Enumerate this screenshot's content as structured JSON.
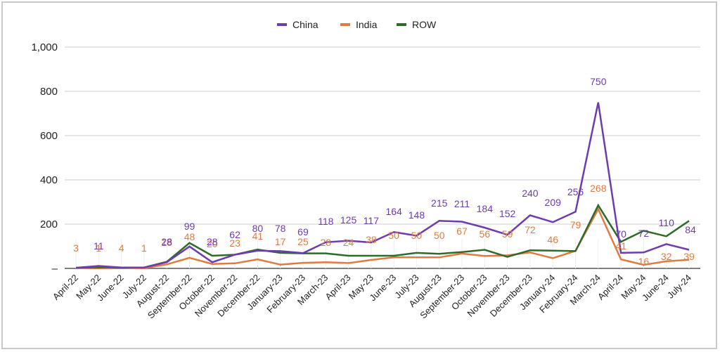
{
  "chart_data": {
    "type": "line",
    "title": "",
    "xlabel": "",
    "ylabel": "",
    "ylim": [
      0,
      1000
    ],
    "yticks": [
      "–",
      "200",
      "400",
      "600",
      "800",
      "1,000"
    ],
    "grid": true,
    "legend_position": "top",
    "categories": [
      "April-22",
      "May-22",
      "June-22",
      "July-22",
      "August-22",
      "September-22",
      "October-22",
      "November-22",
      "December-22",
      "January-23",
      "February-23",
      "March-23",
      "April-23",
      "May-23",
      "June-23",
      "July-23",
      "August-23",
      "September-23",
      "October-23",
      "November-23",
      "December-23",
      "January-24",
      "February-24",
      "March-24",
      "April-24",
      "May-24",
      "June-24",
      "July-24"
    ],
    "series": [
      {
        "name": "China",
        "color": "#6f3bb0",
        "values": [
          3,
          11,
          4,
          4,
          28,
          99,
          28,
          62,
          80,
          78,
          69,
          118,
          125,
          117,
          164,
          148,
          215,
          211,
          184,
          152,
          240,
          209,
          256,
          750,
          70,
          72,
          110,
          84
        ]
      },
      {
        "name": "India",
        "color": "#e07b3f",
        "values": [
          3,
          1,
          4,
          1,
          18,
          48,
          20,
          23,
          41,
          17,
          25,
          28,
          24,
          38,
          50,
          50,
          50,
          67,
          56,
          59,
          72,
          46,
          79,
          268,
          41,
          16,
          32,
          39
        ]
      },
      {
        "name": "ROW",
        "color": "#2e6b2a",
        "values": [
          3,
          5,
          4,
          4,
          30,
          115,
          57,
          62,
          85,
          70,
          68,
          68,
          57,
          57,
          57,
          70,
          66,
          74,
          84,
          52,
          82,
          80,
          78,
          285,
          120,
          170,
          145,
          215
        ]
      }
    ],
    "data_labels": {
      "China": [
        "",
        "11",
        "",
        "",
        "28",
        "99",
        "28",
        "62",
        "80",
        "78",
        "69",
        "118",
        "125",
        "117",
        "164",
        "148",
        "215",
        "211",
        "184",
        "152",
        "240",
        "209",
        "256",
        "750",
        "70",
        "72",
        "110",
        "84"
      ],
      "India": [
        "3",
        "1",
        "4",
        "1",
        "18",
        "48",
        "20",
        "23",
        "41",
        "17",
        "25",
        "28",
        "24",
        "38",
        "50",
        "50",
        "50",
        "67",
        "56",
        "59",
        "72",
        "46",
        "79",
        "268",
        "41",
        "16",
        "32",
        "39"
      ]
    }
  }
}
